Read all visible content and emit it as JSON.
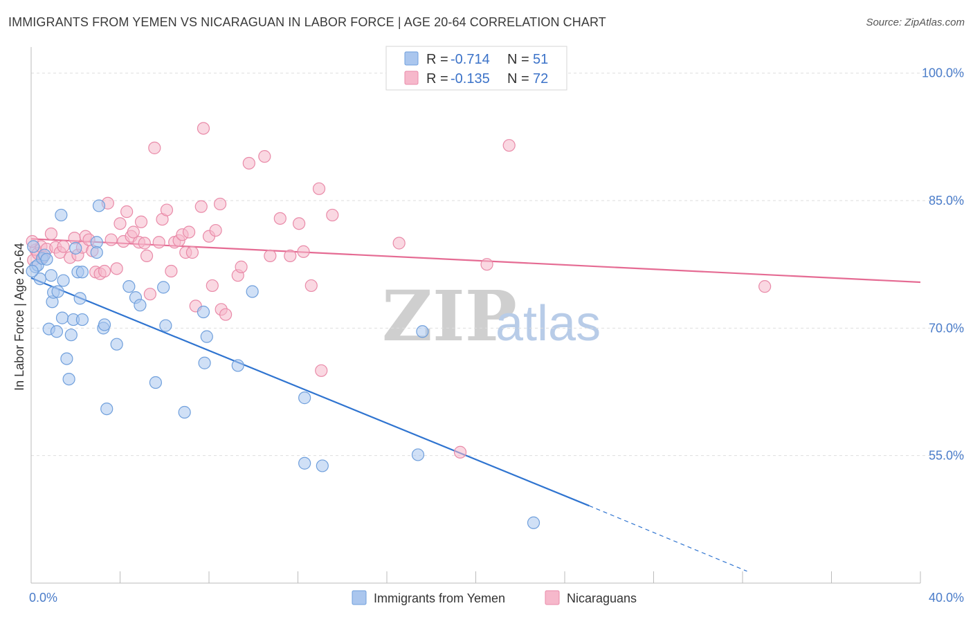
{
  "title": "IMMIGRANTS FROM YEMEN VS NICARAGUAN IN LABOR FORCE | AGE 20-64 CORRELATION CHART",
  "source": "Source: ZipAtlas.com",
  "watermark": {
    "zip": "ZIP",
    "atlas": "atlas"
  },
  "colors": {
    "blue_fill": "#aac6ee",
    "blue_stroke": "#6f9fdc",
    "blue_line": "#2f74d0",
    "pink_fill": "#f6b8cb",
    "pink_stroke": "#e98aa8",
    "pink_line": "#e56b93",
    "tick": "#4a7cc9",
    "grid": "#dddddd"
  },
  "legend": {
    "rows": [
      {
        "r_label": "R =",
        "r_value": "-0.714",
        "n_label": "N =",
        "n_value": "51"
      },
      {
        "r_label": "R =",
        "r_value": "-0.135",
        "n_label": "N =",
        "n_value": "72"
      }
    ]
  },
  "chart_data": {
    "type": "scatter",
    "title": "IMMIGRANTS FROM YEMEN VS NICARAGUAN IN LABOR FORCE | AGE 20-64 CORRELATION CHART",
    "xlabel": "",
    "ylabel": "In Labor Force | Age 20-64",
    "xlim": [
      0,
      40
    ],
    "ylim": [
      40,
      102.5
    ],
    "x_tick_labels": [
      "0.0%",
      "40.0%"
    ],
    "y_ticks": [
      55,
      70,
      85,
      100
    ],
    "y_tick_labels": [
      "55.0%",
      "70.0%",
      "85.0%",
      "100.0%"
    ],
    "grid": true,
    "legend_position": "top-center",
    "series": [
      {
        "name": "Immigrants from Yemen",
        "color": "#aac6ee",
        "trend": {
          "x": [
            0,
            25.1
          ],
          "y": [
            75.9,
            49.1
          ],
          "dashed_to": {
            "x": 32.2,
            "y": 41.4
          }
        },
        "points": [
          [
            0.1,
            79.6
          ],
          [
            0.2,
            77.2
          ],
          [
            0.3,
            77.4
          ],
          [
            0.4,
            75.8
          ],
          [
            0.5,
            78.2
          ],
          [
            0.6,
            78.6
          ],
          [
            0.7,
            78.1
          ],
          [
            0.8,
            69.9
          ],
          [
            0.9,
            76.2
          ],
          [
            0.95,
            73.1
          ],
          [
            1.0,
            74.2
          ],
          [
            1.15,
            69.6
          ],
          [
            1.2,
            74.3
          ],
          [
            1.35,
            83.3
          ],
          [
            1.4,
            71.2
          ],
          [
            1.45,
            75.6
          ],
          [
            1.6,
            66.4
          ],
          [
            1.7,
            64.0
          ],
          [
            1.8,
            69.2
          ],
          [
            1.9,
            71.0
          ],
          [
            2.0,
            79.4
          ],
          [
            2.1,
            76.6
          ],
          [
            2.2,
            73.5
          ],
          [
            2.3,
            71.0
          ],
          [
            2.3,
            76.6
          ],
          [
            2.95,
            80.1
          ],
          [
            2.95,
            78.9
          ],
          [
            3.05,
            84.4
          ],
          [
            3.25,
            70.0
          ],
          [
            3.3,
            70.4
          ],
          [
            3.4,
            60.5
          ],
          [
            3.85,
            68.1
          ],
          [
            4.4,
            74.9
          ],
          [
            4.7,
            73.6
          ],
          [
            4.9,
            72.7
          ],
          [
            5.6,
            63.6
          ],
          [
            5.95,
            74.8
          ],
          [
            6.05,
            70.3
          ],
          [
            6.9,
            60.1
          ],
          [
            7.75,
            71.9
          ],
          [
            7.8,
            65.9
          ],
          [
            7.9,
            69.0
          ],
          [
            9.3,
            65.6
          ],
          [
            9.95,
            74.3
          ],
          [
            12.3,
            61.8
          ],
          [
            12.3,
            54.1
          ],
          [
            13.1,
            53.8
          ],
          [
            17.4,
            55.1
          ],
          [
            17.6,
            69.6
          ],
          [
            22.6,
            47.1
          ],
          [
            0.05,
            76.7
          ]
        ]
      },
      {
        "name": "Nicaraguans",
        "color": "#f6b8cb",
        "trend": {
          "x": [
            0,
            40
          ],
          "y": [
            80.5,
            75.4
          ]
        },
        "points": [
          [
            0.1,
            78.0
          ],
          [
            0.2,
            79.2
          ],
          [
            0.3,
            78.8
          ],
          [
            0.45,
            79.6
          ],
          [
            0.55,
            78.4
          ],
          [
            0.7,
            79.3
          ],
          [
            0.9,
            81.1
          ],
          [
            1.1,
            79.5
          ],
          [
            1.3,
            78.9
          ],
          [
            1.45,
            79.6
          ],
          [
            1.75,
            78.3
          ],
          [
            1.95,
            80.6
          ],
          [
            2.1,
            78.6
          ],
          [
            2.3,
            79.5
          ],
          [
            2.45,
            80.8
          ],
          [
            2.6,
            80.4
          ],
          [
            2.75,
            79.1
          ],
          [
            2.9,
            76.6
          ],
          [
            3.1,
            76.4
          ],
          [
            3.3,
            76.7
          ],
          [
            3.45,
            84.7
          ],
          [
            3.6,
            80.4
          ],
          [
            3.85,
            77.0
          ],
          [
            4.0,
            82.3
          ],
          [
            4.15,
            80.2
          ],
          [
            4.3,
            83.7
          ],
          [
            4.5,
            80.8
          ],
          [
            4.6,
            81.3
          ],
          [
            4.85,
            80.1
          ],
          [
            4.95,
            82.5
          ],
          [
            5.1,
            80.0
          ],
          [
            5.2,
            78.5
          ],
          [
            5.35,
            74.0
          ],
          [
            5.55,
            91.2
          ],
          [
            5.75,
            80.1
          ],
          [
            5.9,
            82.8
          ],
          [
            6.1,
            83.9
          ],
          [
            6.3,
            76.7
          ],
          [
            6.45,
            80.1
          ],
          [
            6.65,
            80.3
          ],
          [
            6.8,
            81.0
          ],
          [
            6.95,
            78.9
          ],
          [
            7.1,
            81.3
          ],
          [
            7.25,
            78.9
          ],
          [
            7.4,
            72.6
          ],
          [
            7.65,
            84.3
          ],
          [
            7.75,
            93.5
          ],
          [
            8.0,
            80.8
          ],
          [
            8.15,
            75.0
          ],
          [
            8.3,
            81.5
          ],
          [
            8.5,
            84.6
          ],
          [
            8.55,
            72.2
          ],
          [
            8.75,
            71.6
          ],
          [
            9.3,
            76.2
          ],
          [
            9.45,
            77.2
          ],
          [
            9.8,
            89.4
          ],
          [
            10.5,
            90.2
          ],
          [
            10.75,
            78.5
          ],
          [
            11.2,
            82.9
          ],
          [
            11.65,
            78.5
          ],
          [
            12.05,
            82.3
          ],
          [
            12.25,
            79.0
          ],
          [
            12.6,
            75.0
          ],
          [
            12.95,
            86.4
          ],
          [
            13.05,
            65.0
          ],
          [
            13.55,
            83.3
          ],
          [
            16.55,
            80.0
          ],
          [
            19.3,
            55.4
          ],
          [
            20.5,
            77.5
          ],
          [
            21.5,
            91.5
          ],
          [
            33.0,
            74.9
          ],
          [
            0.05,
            80.2
          ]
        ]
      }
    ]
  },
  "bottom_legend": [
    "Immigrants from Yemen",
    "Nicaraguans"
  ]
}
